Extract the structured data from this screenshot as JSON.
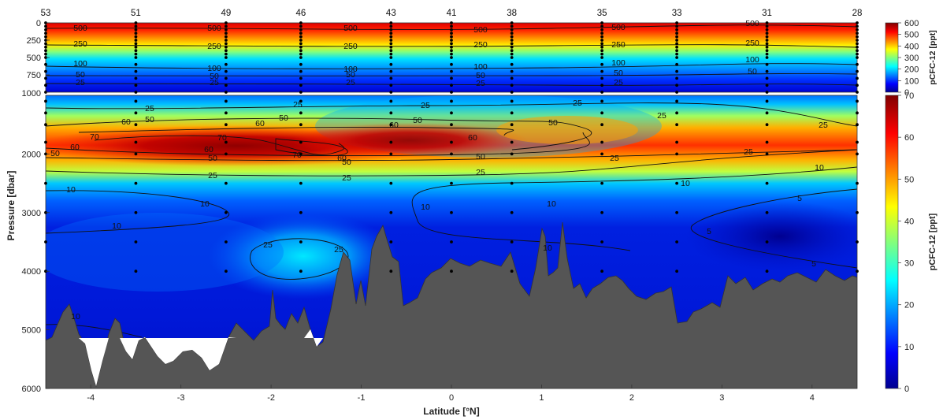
{
  "chart_data": {
    "type": "heatmap",
    "xlabel": "Latitude [°N]",
    "ylabel": "Pressure [dbar]",
    "xlim": [
      -4.5,
      4.5
    ],
    "ylim": [
      0,
      6000
    ],
    "x_ticks": [
      "-4",
      "-3",
      "-2",
      "-1",
      "0",
      "1",
      "2",
      "3",
      "4"
    ],
    "y_ticks": [
      "0",
      "250",
      "500",
      "750",
      "1000",
      "2000",
      "3000",
      "4000",
      "5000",
      "6000"
    ],
    "stations": [
      {
        "label": "53",
        "lat": -4.5
      },
      {
        "label": "51",
        "lat": -3.5
      },
      {
        "label": "49",
        "lat": -2.5
      },
      {
        "label": "46",
        "lat": -1.67
      },
      {
        "label": "43",
        "lat": -0.67
      },
      {
        "label": "41",
        "lat": 0.0
      },
      {
        "label": "38",
        "lat": 0.67
      },
      {
        "label": "35",
        "lat": 1.67
      },
      {
        "label": "33",
        "lat": 2.5
      },
      {
        "label": "31",
        "lat": 3.5
      },
      {
        "label": "28",
        "lat": 4.5
      }
    ],
    "upper_panel": {
      "pressure_range": [
        0,
        1000
      ],
      "colorbar_label": "pCFC-12 [ppt]",
      "colorbar_range": [
        0,
        600
      ],
      "colorbar_ticks": [
        "0",
        "100",
        "200",
        "300",
        "400",
        "500",
        "600"
      ],
      "contour_levels": [
        "500",
        "250",
        "100",
        "50",
        "25"
      ]
    },
    "lower_panel": {
      "pressure_range": [
        1000,
        6000
      ],
      "colorbar_label": "pCFC-12 [ppt]",
      "colorbar_range": [
        0,
        70
      ],
      "colorbar_ticks": [
        "0",
        "10",
        "20",
        "30",
        "40",
        "50",
        "60",
        "70"
      ],
      "contour_levels": [
        "70",
        "60",
        "50",
        "25",
        "10",
        "5"
      ],
      "max_value_pressure_dbar": 1800,
      "max_value_latitude": -1.7
    },
    "bathymetry_color": "#555555",
    "colormap": [
      "#00008f",
      "#0000ff",
      "#00ffff",
      "#ffff00",
      "#ff0000",
      "#800000"
    ]
  }
}
